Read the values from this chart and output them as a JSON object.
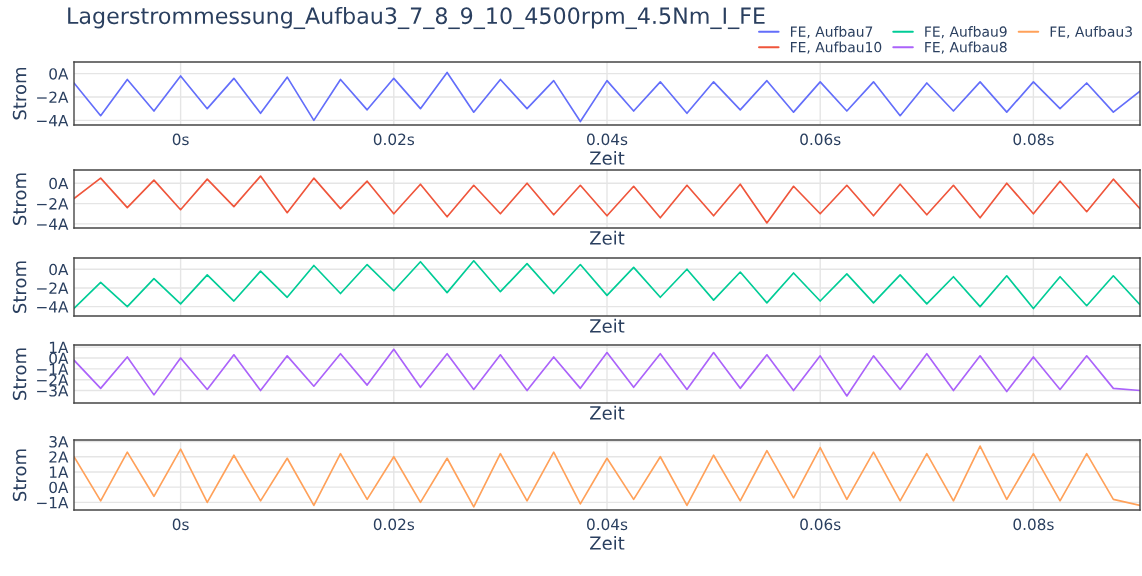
{
  "chart_data": [
    {
      "type": "line",
      "title": "Lagerstrommessung_Aufbau3_7_8_9_10_4500rpm_4.5Nm_I_FE",
      "xlabel": "Zeit",
      "ylabel": "Strom",
      "legend": "top right",
      "grid": true,
      "x": [
        -0.01,
        -0.0075,
        -0.005,
        -0.0025,
        0,
        0.0025,
        0.005,
        0.0075,
        0.01,
        0.0125,
        0.015,
        0.0175,
        0.02,
        0.0225,
        0.025,
        0.0275,
        0.03,
        0.0325,
        0.035,
        0.0375,
        0.04,
        0.0425,
        0.045,
        0.0475,
        0.05,
        0.0525,
        0.055,
        0.0575,
        0.06,
        0.0625,
        0.065,
        0.0675,
        0.07,
        0.0725,
        0.075,
        0.0775,
        0.08,
        0.0825,
        0.085,
        0.0875,
        0.09
      ],
      "xlim": [
        -0.01,
        0.09
      ],
      "xticks": [
        {
          "value": 0,
          "label": "0s"
        },
        {
          "value": 0.02,
          "label": "0.02s"
        },
        {
          "value": 0.04,
          "label": "0.04s"
        },
        {
          "value": 0.06,
          "label": "0.06s"
        },
        {
          "value": 0.08,
          "label": "0.08s"
        }
      ],
      "ylim": [
        -4.4,
        1.0
      ],
      "yticks": [
        {
          "value": 0,
          "label": "0A"
        },
        {
          "value": -2,
          "label": "−2A"
        },
        {
          "value": -4,
          "label": "−4A"
        }
      ],
      "series": [
        {
          "name": "FE, Aufbau7",
          "color": "#636efa",
          "values": [
            -0.8,
            -3.6,
            -0.5,
            -3.2,
            -0.2,
            -3.0,
            -0.4,
            -3.4,
            -0.3,
            -4.0,
            -0.5,
            -3.1,
            -0.4,
            -3.0,
            0.1,
            -3.3,
            -0.5,
            -3.0,
            -0.6,
            -4.1,
            -0.6,
            -3.2,
            -0.7,
            -3.4,
            -0.7,
            -3.1,
            -0.6,
            -3.3,
            -0.7,
            -3.2,
            -0.7,
            -3.6,
            -0.8,
            -3.2,
            -0.7,
            -3.3,
            -0.7,
            -3.0,
            -0.8,
            -3.3,
            -1.5
          ]
        }
      ]
    },
    {
      "type": "line",
      "xlabel": "Zeit",
      "ylabel": "Strom",
      "grid": true,
      "tick_labels": "y",
      "x": [
        -0.01,
        -0.0075,
        -0.005,
        -0.0025,
        0,
        0.0025,
        0.005,
        0.0075,
        0.01,
        0.0125,
        0.015,
        0.0175,
        0.02,
        0.0225,
        0.025,
        0.0275,
        0.03,
        0.0325,
        0.035,
        0.0375,
        0.04,
        0.0425,
        0.045,
        0.0475,
        0.05,
        0.0525,
        0.055,
        0.0575,
        0.06,
        0.0625,
        0.065,
        0.0675,
        0.07,
        0.0725,
        0.075,
        0.0775,
        0.08,
        0.0825,
        0.085,
        0.0875,
        0.09
      ],
      "xlim": [
        -0.01,
        0.09
      ],
      "xticks": [
        {
          "value": 0,
          "label": null
        },
        {
          "value": 0.02,
          "label": null
        },
        {
          "value": 0.04,
          "label": null
        },
        {
          "value": 0.06,
          "label": null
        },
        {
          "value": 0.08,
          "label": null
        }
      ],
      "ylim": [
        -4.4,
        1.3
      ],
      "yticks": [
        {
          "value": 0,
          "label": "0A"
        },
        {
          "value": -2,
          "label": "−2A"
        },
        {
          "value": -4,
          "label": "−4A"
        }
      ],
      "series": [
        {
          "name": "FE, Aufbau10",
          "color": "#ef553b",
          "values": [
            -1.5,
            0.5,
            -2.4,
            0.3,
            -2.6,
            0.4,
            -2.3,
            0.7,
            -2.9,
            0.5,
            -2.5,
            0.2,
            -3.0,
            -0.1,
            -3.3,
            -0.2,
            -3.0,
            0.0,
            -3.1,
            -0.2,
            -3.2,
            -0.3,
            -3.4,
            -0.2,
            -3.2,
            -0.1,
            -3.9,
            -0.3,
            -3.0,
            -0.2,
            -3.2,
            -0.1,
            -3.1,
            -0.2,
            -3.4,
            0.0,
            -3.0,
            0.2,
            -2.8,
            0.4,
            -2.5
          ]
        }
      ]
    },
    {
      "type": "line",
      "xlabel": "Zeit",
      "ylabel": "Strom",
      "grid": true,
      "tick_labels": "y",
      "x": [
        -0.01,
        -0.0075,
        -0.005,
        -0.0025,
        0,
        0.0025,
        0.005,
        0.0075,
        0.01,
        0.0125,
        0.015,
        0.0175,
        0.02,
        0.0225,
        0.025,
        0.0275,
        0.03,
        0.0325,
        0.035,
        0.0375,
        0.04,
        0.0425,
        0.045,
        0.0475,
        0.05,
        0.0525,
        0.055,
        0.0575,
        0.06,
        0.0625,
        0.065,
        0.0675,
        0.07,
        0.0725,
        0.075,
        0.0775,
        0.08,
        0.0825,
        0.085,
        0.0875,
        0.09
      ],
      "xlim": [
        -0.01,
        0.09
      ],
      "xticks": [
        {
          "value": 0,
          "label": null
        },
        {
          "value": 0.02,
          "label": null
        },
        {
          "value": 0.04,
          "label": null
        },
        {
          "value": 0.06,
          "label": null
        },
        {
          "value": 0.08,
          "label": null
        }
      ],
      "ylim": [
        -5.0,
        1.2
      ],
      "yticks": [
        {
          "value": 0,
          "label": "0A"
        },
        {
          "value": -2,
          "label": "−2A"
        },
        {
          "value": -4,
          "label": "−4A"
        }
      ],
      "series": [
        {
          "name": "FE, Aufbau9",
          "color": "#00cc96",
          "values": [
            -4.2,
            -1.4,
            -4.0,
            -1.0,
            -3.7,
            -0.6,
            -3.4,
            -0.2,
            -3.0,
            0.4,
            -2.6,
            0.5,
            -2.3,
            0.8,
            -2.5,
            0.9,
            -2.4,
            0.6,
            -2.6,
            0.5,
            -2.8,
            0.2,
            -3.0,
            0.0,
            -3.3,
            -0.3,
            -3.6,
            -0.4,
            -3.4,
            -0.5,
            -3.6,
            -0.6,
            -3.7,
            -0.8,
            -4.0,
            -0.7,
            -4.2,
            -0.8,
            -3.9,
            -0.7,
            -3.8
          ]
        }
      ]
    },
    {
      "type": "line",
      "xlabel": "Zeit",
      "ylabel": "Strom",
      "grid": true,
      "tick_labels": "y",
      "x": [
        -0.01,
        -0.0075,
        -0.005,
        -0.0025,
        0,
        0.0025,
        0.005,
        0.0075,
        0.01,
        0.0125,
        0.015,
        0.0175,
        0.02,
        0.0225,
        0.025,
        0.0275,
        0.03,
        0.0325,
        0.035,
        0.0375,
        0.04,
        0.0425,
        0.045,
        0.0475,
        0.05,
        0.0525,
        0.055,
        0.0575,
        0.06,
        0.0625,
        0.065,
        0.0675,
        0.07,
        0.0725,
        0.075,
        0.0775,
        0.08,
        0.0825,
        0.085,
        0.0875,
        0.09
      ],
      "xlim": [
        -0.01,
        0.09
      ],
      "xticks": [
        {
          "value": 0,
          "label": null
        },
        {
          "value": 0.02,
          "label": null
        },
        {
          "value": 0.04,
          "label": null
        },
        {
          "value": 0.06,
          "label": null
        },
        {
          "value": 0.08,
          "label": null
        }
      ],
      "ylim": [
        -4.15,
        1.2
      ],
      "yticks": [
        {
          "value": 1,
          "label": "1A"
        },
        {
          "value": 0,
          "label": "0A"
        },
        {
          "value": -1,
          "label": "−1A"
        },
        {
          "value": -2,
          "label": "−2A"
        },
        {
          "value": -3,
          "label": "−3A"
        }
      ],
      "series": [
        {
          "name": "FE, Aufbau8",
          "color": "#ab63fa",
          "values": [
            -0.2,
            -2.8,
            0.1,
            -3.4,
            0.0,
            -2.9,
            0.3,
            -3.0,
            0.2,
            -2.6,
            0.4,
            -2.5,
            0.8,
            -2.7,
            0.4,
            -2.9,
            0.3,
            -3.0,
            0.1,
            -2.8,
            0.5,
            -2.7,
            0.4,
            -2.9,
            0.5,
            -2.8,
            0.3,
            -3.0,
            0.2,
            -3.5,
            0.2,
            -2.9,
            0.4,
            -3.0,
            0.2,
            -3.1,
            0.1,
            -2.9,
            0.2,
            -2.8,
            -3.0
          ]
        }
      ]
    },
    {
      "type": "line",
      "xlabel": "Zeit",
      "ylabel": "Strom",
      "grid": true,
      "x": [
        -0.01,
        -0.0075,
        -0.005,
        -0.0025,
        0,
        0.0025,
        0.005,
        0.0075,
        0.01,
        0.0125,
        0.015,
        0.0175,
        0.02,
        0.0225,
        0.025,
        0.0275,
        0.03,
        0.0325,
        0.035,
        0.0375,
        0.04,
        0.0425,
        0.045,
        0.0475,
        0.05,
        0.0525,
        0.055,
        0.0575,
        0.06,
        0.0625,
        0.065,
        0.0675,
        0.07,
        0.0725,
        0.075,
        0.0775,
        0.08,
        0.0825,
        0.085,
        0.0875,
        0.09
      ],
      "xlim": [
        -0.01,
        0.09
      ],
      "xticks": [
        {
          "value": 0,
          "label": "0s"
        },
        {
          "value": 0.02,
          "label": "0.02s"
        },
        {
          "value": 0.04,
          "label": "0.04s"
        },
        {
          "value": 0.06,
          "label": "0.06s"
        },
        {
          "value": 0.08,
          "label": "0.08s"
        }
      ],
      "ylim": [
        -1.5,
        3.1
      ],
      "yticks": [
        {
          "value": 3,
          "label": "3A"
        },
        {
          "value": 2,
          "label": "2A"
        },
        {
          "value": 1,
          "label": "1A"
        },
        {
          "value": 0,
          "label": "0A"
        },
        {
          "value": -1,
          "label": "−1A"
        }
      ],
      "series": [
        {
          "name": "FE, Aufbau3",
          "color": "#ffa15a",
          "values": [
            2.0,
            -0.9,
            2.3,
            -0.6,
            2.5,
            -1.0,
            2.1,
            -0.9,
            1.9,
            -1.2,
            2.2,
            -0.8,
            2.0,
            -1.0,
            1.9,
            -1.3,
            2.2,
            -0.9,
            2.3,
            -1.1,
            1.9,
            -0.8,
            2.0,
            -1.2,
            2.1,
            -0.9,
            2.4,
            -0.7,
            2.6,
            -0.8,
            2.3,
            -0.9,
            2.2,
            -0.9,
            2.7,
            -0.8,
            2.2,
            -0.9,
            2.2,
            -0.8,
            -1.2
          ]
        }
      ]
    }
  ]
}
